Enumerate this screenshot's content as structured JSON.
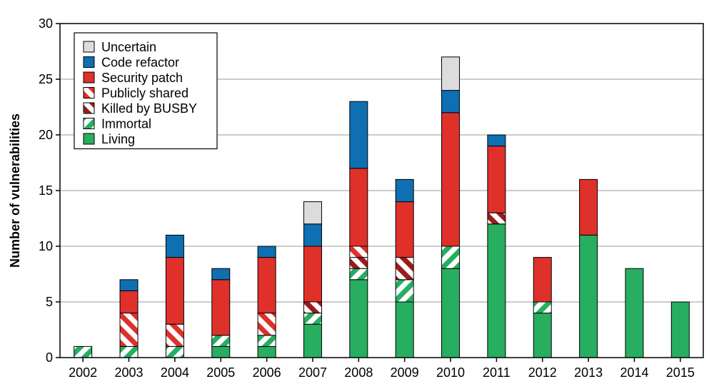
{
  "chart_data": {
    "type": "bar",
    "stacked": true,
    "title": "",
    "xlabel": "",
    "ylabel": "Number of vulnerabilities",
    "ylim": [
      0,
      30
    ],
    "yticks": [
      0,
      5,
      10,
      15,
      20,
      25,
      30
    ],
    "grid": "horizontal",
    "legend_position": "top-left",
    "categories": [
      "2002",
      "2003",
      "2004",
      "2005",
      "2006",
      "2007",
      "2008",
      "2009",
      "2010",
      "2011",
      "2012",
      "2013",
      "2014",
      "2015"
    ],
    "series": [
      {
        "name": "Living",
        "color": "#27ae60",
        "pattern": "solid",
        "values": [
          0,
          0,
          0,
          1,
          1,
          3,
          7,
          5,
          8,
          12,
          4,
          11,
          8,
          5
        ]
      },
      {
        "name": "Immortal",
        "color": "#27ae60",
        "pattern": "hatch",
        "values": [
          1,
          1,
          1,
          1,
          1,
          1,
          1,
          2,
          2,
          0,
          1,
          0,
          0,
          0
        ]
      },
      {
        "name": "Killed by BUSBY",
        "color": "#9b1b1b",
        "pattern": "hatch",
        "values": [
          0,
          0,
          0,
          0,
          0,
          1,
          1,
          2,
          0,
          1,
          0,
          0,
          0,
          0
        ]
      },
      {
        "name": "Publicly shared",
        "color": "#e0302a",
        "pattern": "hatch",
        "values": [
          0,
          3,
          2,
          0,
          2,
          0,
          1,
          0,
          0,
          0,
          0,
          0,
          0,
          0
        ]
      },
      {
        "name": "Security patch",
        "color": "#e0302a",
        "pattern": "solid",
        "values": [
          0,
          2,
          6,
          5,
          5,
          5,
          7,
          5,
          12,
          6,
          4,
          5,
          0,
          0
        ]
      },
      {
        "name": "Code refactor",
        "color": "#0e6fb3",
        "pattern": "solid",
        "values": [
          0,
          1,
          2,
          1,
          1,
          2,
          6,
          2,
          2,
          1,
          0,
          0,
          0,
          0
        ]
      },
      {
        "name": "Uncertain",
        "color": "#dcdcdc",
        "pattern": "solid",
        "values": [
          0,
          0,
          0,
          0,
          0,
          2,
          0,
          0,
          3,
          0,
          0,
          0,
          0,
          0
        ]
      }
    ],
    "legend_order": [
      "Uncertain",
      "Code refactor",
      "Security patch",
      "Publicly shared",
      "Killed by BUSBY",
      "Immortal",
      "Living"
    ]
  }
}
